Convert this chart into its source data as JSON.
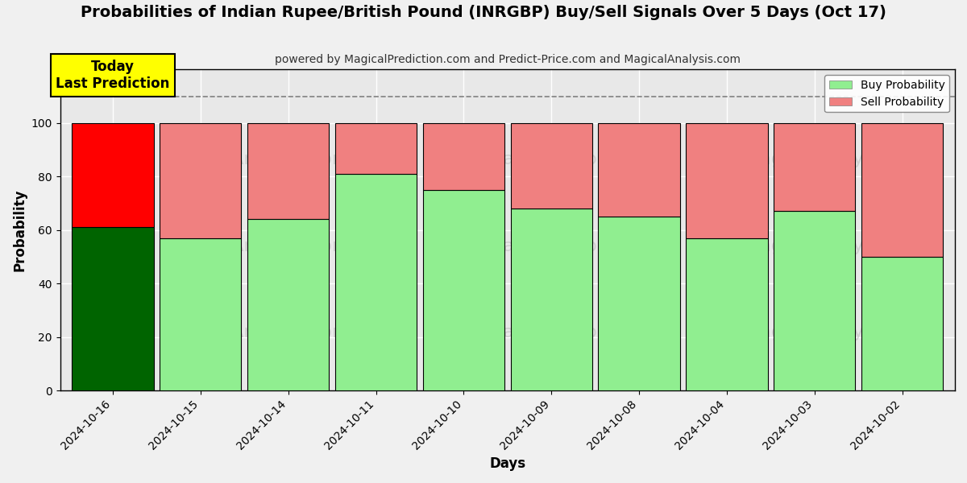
{
  "title": "Probabilities of Indian Rupee/British Pound (INRGBP) Buy/Sell Signals Over 5 Days (Oct 17)",
  "subtitle": "powered by MagicalPrediction.com and Predict-Price.com and MagicalAnalysis.com",
  "xlabel": "Days",
  "ylabel": "Probability",
  "categories": [
    "2024-10-16",
    "2024-10-15",
    "2024-10-14",
    "2024-10-11",
    "2024-10-10",
    "2024-10-09",
    "2024-10-08",
    "2024-10-04",
    "2024-10-03",
    "2024-10-02"
  ],
  "buy_values": [
    61,
    57,
    64,
    81,
    75,
    68,
    65,
    57,
    67,
    50
  ],
  "sell_values": [
    39,
    43,
    36,
    19,
    25,
    32,
    35,
    43,
    33,
    50
  ],
  "today_buy_color": "#006400",
  "today_sell_color": "#FF0000",
  "normal_buy_color": "#90EE90",
  "normal_sell_color": "#F08080",
  "today_label_bg": "#FFFF00",
  "today_label_text": "Today\nLast Prediction",
  "legend_buy_label": "Buy Probability",
  "legend_sell_label": "Sell Probability",
  "ylim": [
    0,
    120
  ],
  "yticks": [
    0,
    20,
    40,
    60,
    80,
    100
  ],
  "dashed_line_y": 110,
  "figsize": [
    12,
    6
  ],
  "dpi": 100,
  "bar_width": 0.93,
  "bg_color": "#E8E8E8",
  "watermark1": "MagicalAnalysis.com",
  "watermark2": "MagicalPrediction.com",
  "watermark_color": "#C0C0C0",
  "watermark_alpha": 0.6
}
